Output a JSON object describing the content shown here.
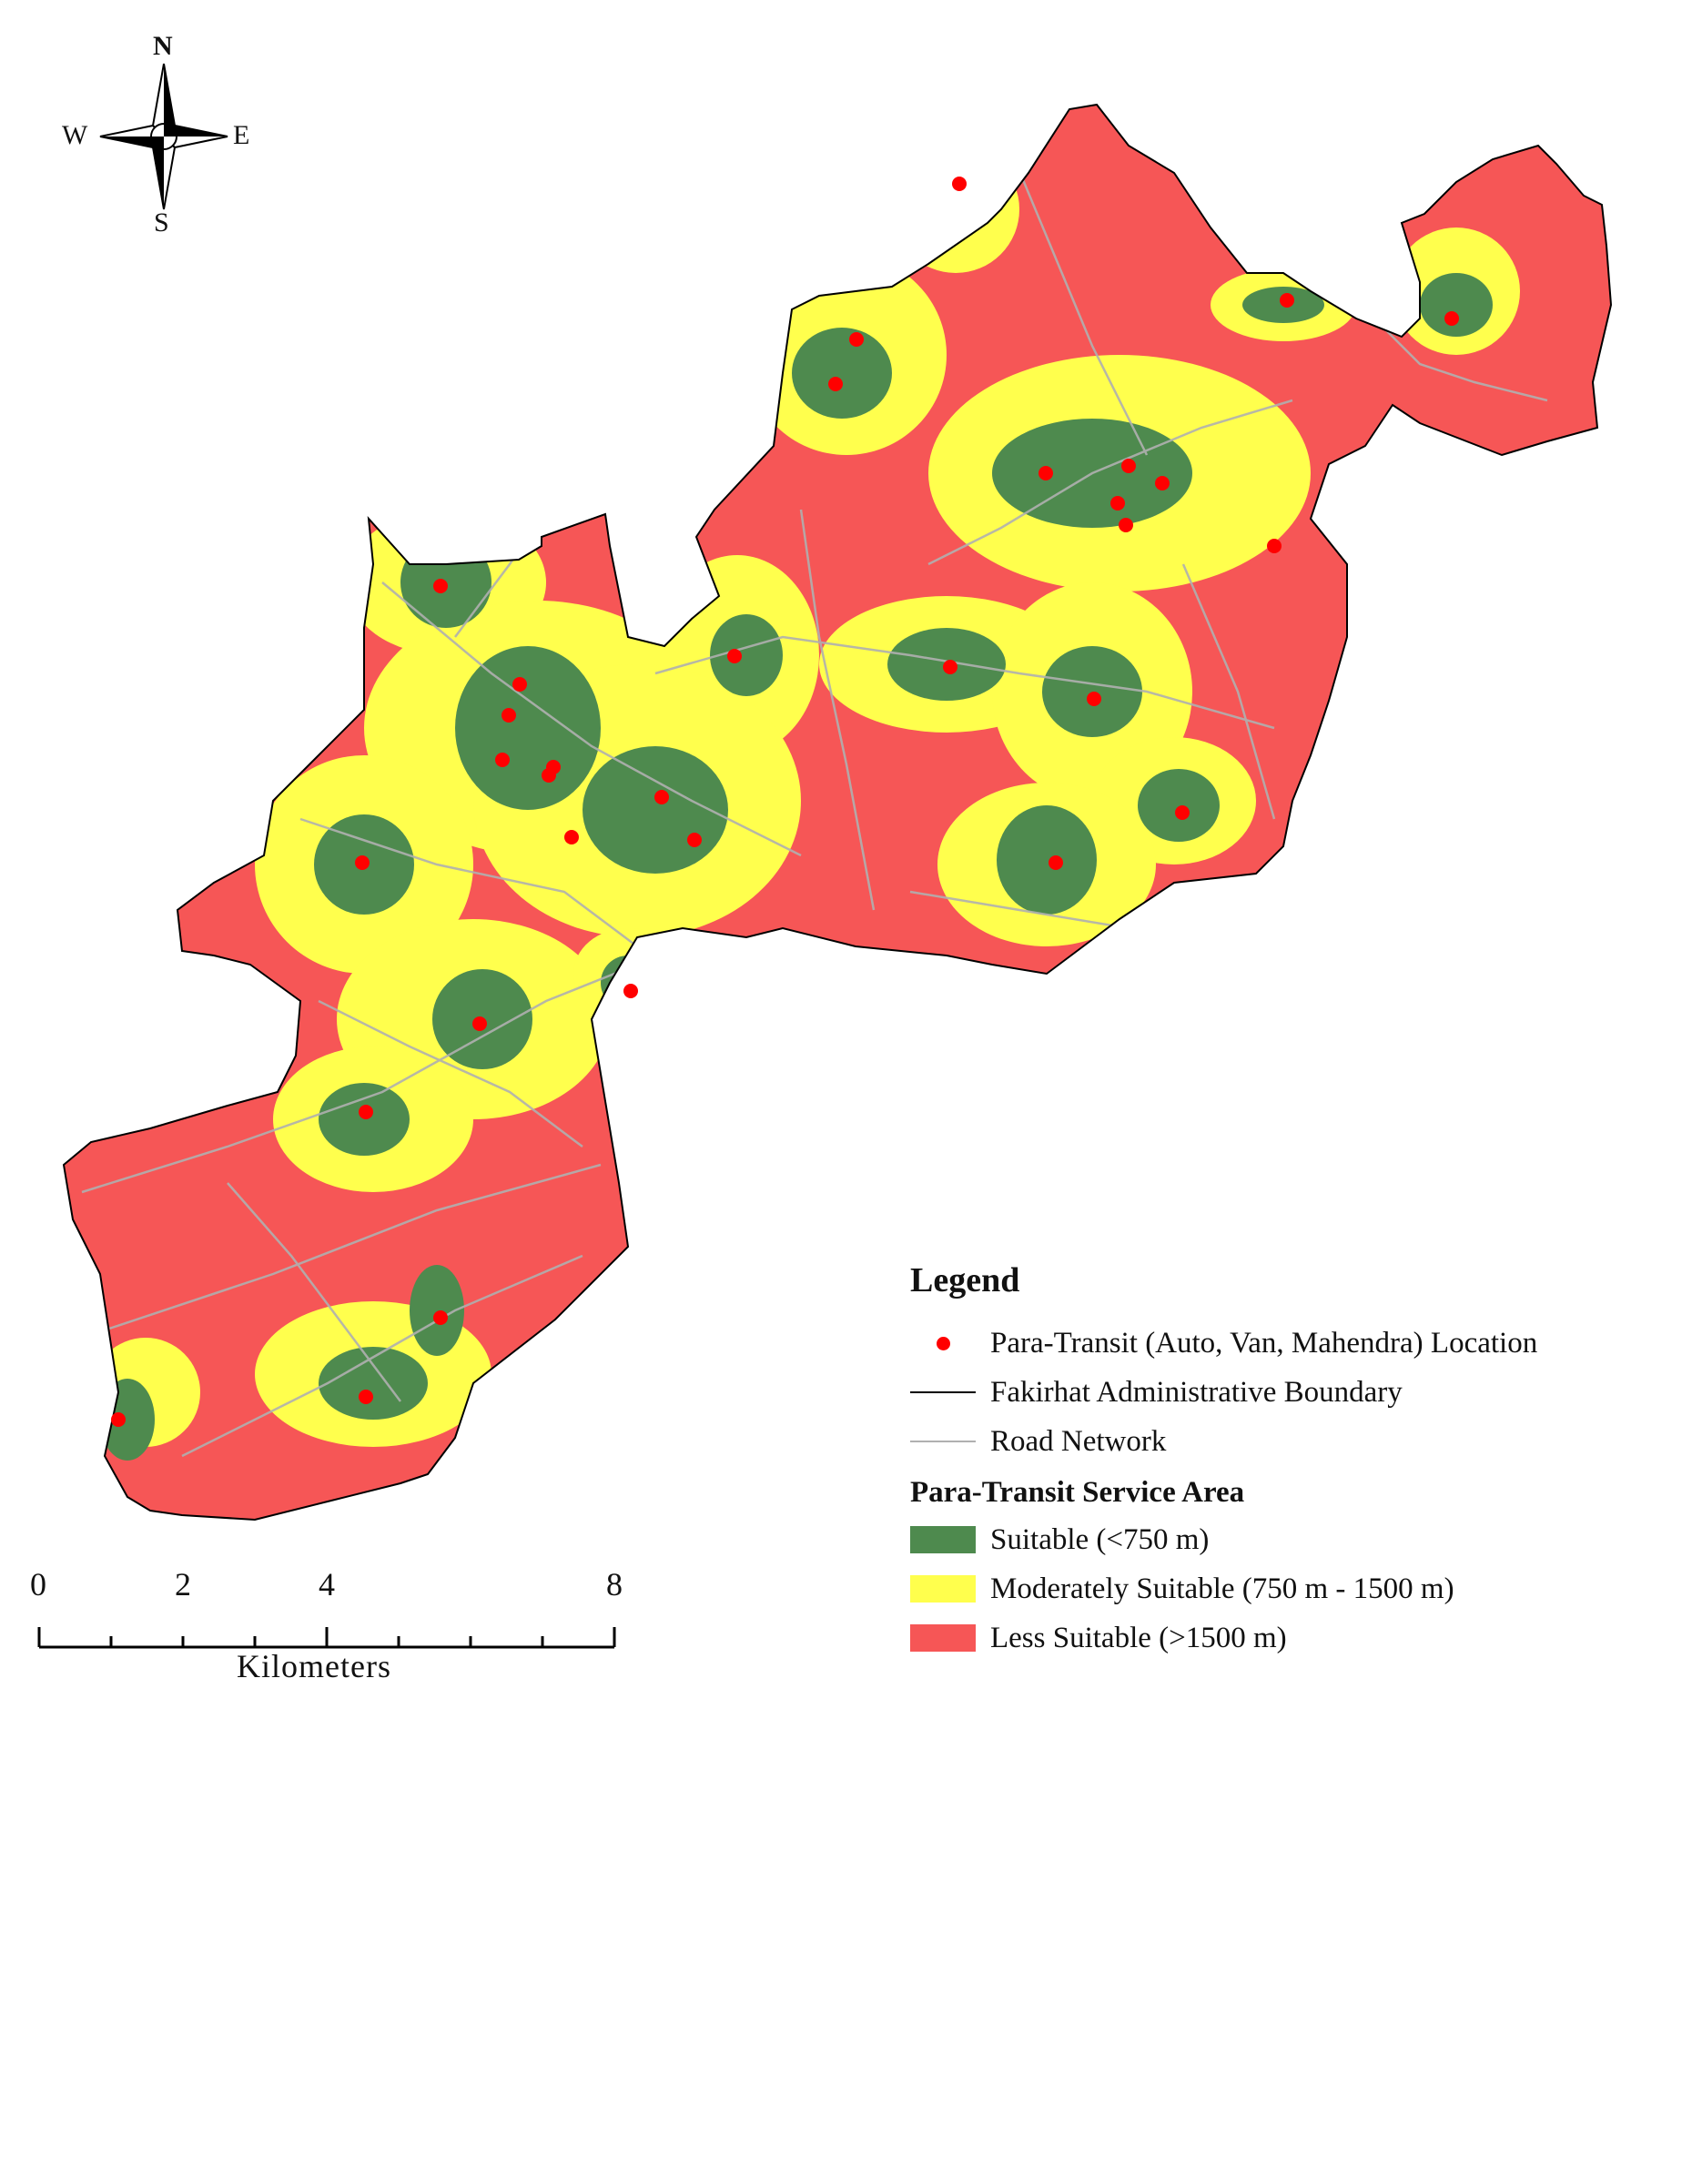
{
  "compass": {
    "north": "N",
    "south": "S",
    "east": "E",
    "west": "W"
  },
  "legend": {
    "title": "Legend",
    "items": [
      {
        "label": "Para-Transit (Auto, Van, Mahendra) Location",
        "symbol": "point",
        "color": "#ff0000"
      },
      {
        "label": "Fakirhat Administrative Boundary",
        "symbol": "line",
        "color": "#000000"
      },
      {
        "label": "Road  Network",
        "symbol": "line",
        "color": "#b0b0b0"
      }
    ],
    "service_area_title": "Para-Transit Service Area",
    "service_area": [
      {
        "label": "Suitable (<750 m)",
        "color": "#4e8a4e"
      },
      {
        "label": "Moderately Suitable (750 m - 1500 m)",
        "color": "#ffff4d"
      },
      {
        "label": "Less Suitable (>1500 m)",
        "color": "#f65656"
      }
    ]
  },
  "scale_bar": {
    "ticks": [
      "0",
      "2",
      "4",
      "8"
    ],
    "unit": "Kilometers"
  }
}
